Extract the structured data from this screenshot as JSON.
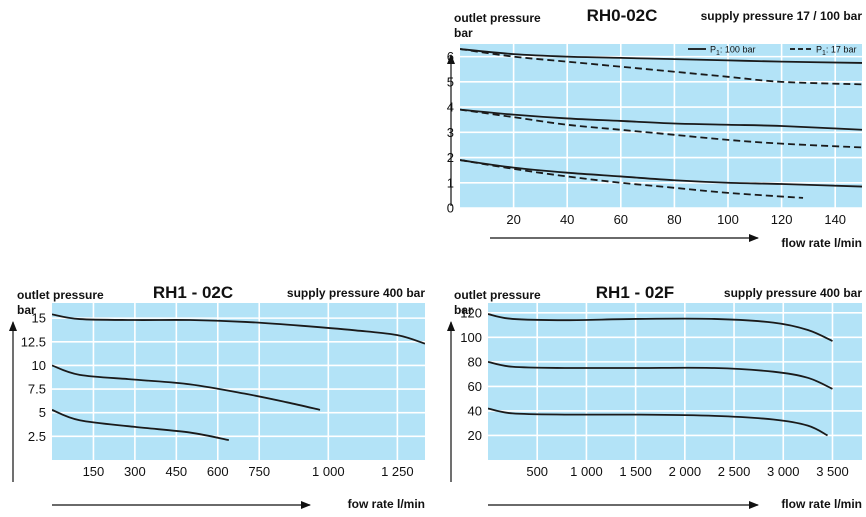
{
  "colors": {
    "plot_bg": "#b3e3f7",
    "grid": "#ffffff",
    "curve": "#1a1a1a",
    "text": "#111111"
  },
  "chart_data": [
    {
      "id": "c1",
      "type": "line",
      "title": "RH0-02C",
      "subtitle": "supply pressure 17 / 100 bar",
      "ylabel_line1": "outlet pressure",
      "ylabel_line2": "bar",
      "xlabel": "flow rate l/min",
      "xlim": [
        0,
        150
      ],
      "ylim": [
        0,
        6.5
      ],
      "xticks": [
        20,
        40,
        60,
        80,
        100,
        120,
        140
      ],
      "yticks": [
        0,
        1,
        2,
        3,
        4,
        5,
        6
      ],
      "xtick_labels": [
        "20",
        "40",
        "60",
        "80",
        "100",
        "120",
        "140"
      ],
      "ytick_labels": [
        "0",
        "1",
        "2",
        "3",
        "4",
        "5",
        "6"
      ],
      "legend": [
        {
          "label_main": "P",
          "label_sub": "1",
          "label_rest": ": 100 bar",
          "style": "solid"
        },
        {
          "label_main": "P",
          "label_sub": "1",
          "label_rest": ": 17 bar",
          "style": "dashed"
        }
      ],
      "legend_position": "top-right",
      "series": [
        {
          "style": "solid",
          "x": [
            0,
            20,
            40,
            60,
            80,
            100,
            120,
            150
          ],
          "y": [
            6.3,
            6.1,
            6.0,
            5.95,
            5.9,
            5.85,
            5.8,
            5.75
          ]
        },
        {
          "style": "dashed",
          "x": [
            0,
            20,
            40,
            60,
            80,
            100,
            120,
            150
          ],
          "y": [
            6.3,
            6.0,
            5.8,
            5.6,
            5.4,
            5.2,
            5.0,
            4.9
          ]
        },
        {
          "style": "solid",
          "x": [
            0,
            20,
            40,
            60,
            80,
            100,
            120,
            150
          ],
          "y": [
            3.9,
            3.7,
            3.55,
            3.45,
            3.35,
            3.3,
            3.25,
            3.1
          ]
        },
        {
          "style": "dashed",
          "x": [
            0,
            20,
            40,
            60,
            80,
            100,
            120,
            150
          ],
          "y": [
            3.9,
            3.6,
            3.3,
            3.1,
            2.9,
            2.7,
            2.55,
            2.4
          ]
        },
        {
          "style": "solid",
          "x": [
            0,
            20,
            40,
            60,
            80,
            100,
            120,
            150
          ],
          "y": [
            1.9,
            1.6,
            1.4,
            1.25,
            1.1,
            1.0,
            0.95,
            0.85
          ]
        },
        {
          "style": "dashed",
          "x": [
            0,
            20,
            40,
            60,
            80,
            100,
            128
          ],
          "y": [
            1.9,
            1.55,
            1.25,
            1.0,
            0.8,
            0.6,
            0.4
          ]
        }
      ]
    },
    {
      "id": "c2",
      "type": "line",
      "title": "RH1 - 02C",
      "subtitle": "supply pressure 400 bar",
      "ylabel_line1": "outlet pressure",
      "ylabel_line2": "bar",
      "xlabel": "fow rate l/min",
      "xlim": [
        0,
        1350
      ],
      "ylim": [
        0,
        16.6
      ],
      "xticks": [
        150,
        300,
        450,
        600,
        750,
        1000,
        1250
      ],
      "yticks": [
        2.5,
        5,
        7.5,
        10,
        12.5,
        15
      ],
      "xtick_labels": [
        "150",
        "300",
        "450",
        "600",
        "750",
        "1 000",
        "1 250"
      ],
      "ytick_labels": [
        "2.5",
        "5",
        "7.5",
        "10",
        "12.5",
        "15"
      ],
      "series": [
        {
          "style": "solid",
          "x": [
            0,
            100,
            300,
            500,
            700,
            900,
            1100,
            1250,
            1350
          ],
          "y": [
            15.4,
            14.9,
            14.8,
            14.8,
            14.6,
            14.2,
            13.7,
            13.2,
            12.3
          ]
        },
        {
          "style": "solid",
          "x": [
            0,
            100,
            300,
            500,
            700,
            850,
            970
          ],
          "y": [
            10.0,
            9.0,
            8.5,
            8.0,
            7.0,
            6.1,
            5.3
          ]
        },
        {
          "style": "solid",
          "x": [
            0,
            100,
            300,
            500,
            640
          ],
          "y": [
            5.3,
            4.2,
            3.5,
            2.9,
            2.1
          ]
        }
      ]
    },
    {
      "id": "c3",
      "type": "line",
      "title": "RH1 - 02F",
      "subtitle": "supply pressure 400 bar",
      "ylabel_line1": "outlet pressure",
      "ylabel_line2": "bar",
      "xlabel": "flow rate l/min",
      "xlim": [
        0,
        3800
      ],
      "ylim": [
        0,
        128
      ],
      "xticks": [
        500,
        1000,
        1500,
        2000,
        2500,
        3000,
        3500
      ],
      "yticks": [
        20,
        40,
        60,
        80,
        100,
        120
      ],
      "xtick_labels": [
        "500",
        "1 000",
        "1 500",
        "2 000",
        "2 500",
        "3 000",
        "3 500"
      ],
      "ytick_labels": [
        "20",
        "40",
        "60",
        "80",
        "100",
        "120"
      ],
      "series": [
        {
          "style": "solid",
          "x": [
            0,
            250,
            800,
            1500,
            2300,
            2900,
            3250,
            3500
          ],
          "y": [
            119,
            115,
            114,
            115,
            115,
            112,
            106,
            97
          ]
        },
        {
          "style": "solid",
          "x": [
            0,
            250,
            800,
            1500,
            2300,
            2900,
            3250,
            3500
          ],
          "y": [
            80,
            76,
            75,
            75,
            75,
            72,
            67,
            58
          ]
        },
        {
          "style": "solid",
          "x": [
            0,
            250,
            800,
            1500,
            2300,
            2900,
            3250,
            3450
          ],
          "y": [
            42,
            38,
            37,
            37,
            36,
            33,
            28,
            20
          ]
        }
      ]
    }
  ]
}
